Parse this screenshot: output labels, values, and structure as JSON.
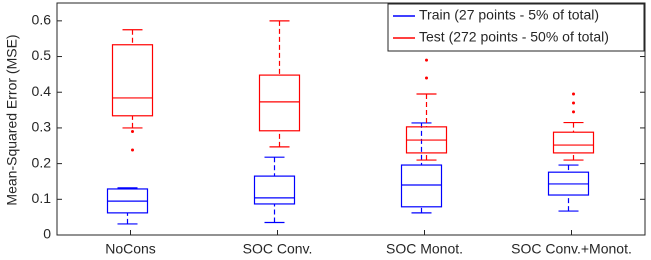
{
  "chart_data": {
    "type": "box",
    "y_label": "Mean-Squared Error (MSE)",
    "categories": [
      "NoCons",
      "SOC Conv.",
      "SOC Monot.",
      "SOC Conv.+Monot."
    ],
    "ylim": [
      0,
      0.65
    ],
    "yticks": [
      0,
      0.1,
      0.2,
      0.3,
      0.4,
      0.5,
      0.6
    ],
    "legend": "upper right",
    "series": [
      {
        "name": "Train (27 points - 5% of total)",
        "color": "#0000ff",
        "values": [
          [
            0.031,
            0.062,
            0.095,
            0.129,
            0.132
          ],
          [
            0.035,
            0.087,
            0.104,
            0.165,
            0.218
          ],
          [
            0.062,
            0.079,
            0.14,
            0.196,
            0.314
          ],
          [
            0.067,
            0.112,
            0.143,
            0.176,
            0.196
          ]
        ],
        "outliers": [
          [],
          [],
          [],
          []
        ]
      },
      {
        "name": "Test (272 points - 50% of total)",
        "color": "#ff0000",
        "values": [
          [
            0.3,
            0.334,
            0.384,
            0.533,
            0.575
          ],
          [
            0.247,
            0.292,
            0.373,
            0.448,
            0.6
          ],
          [
            0.21,
            0.23,
            0.266,
            0.303,
            0.395
          ],
          [
            0.21,
            0.23,
            0.252,
            0.288,
            0.315
          ]
        ],
        "outliers": [
          [
            0.29,
            0.238
          ],
          [],
          [
            0.49,
            0.44
          ],
          [
            0.395,
            0.37,
            0.345
          ]
        ]
      }
    ]
  }
}
